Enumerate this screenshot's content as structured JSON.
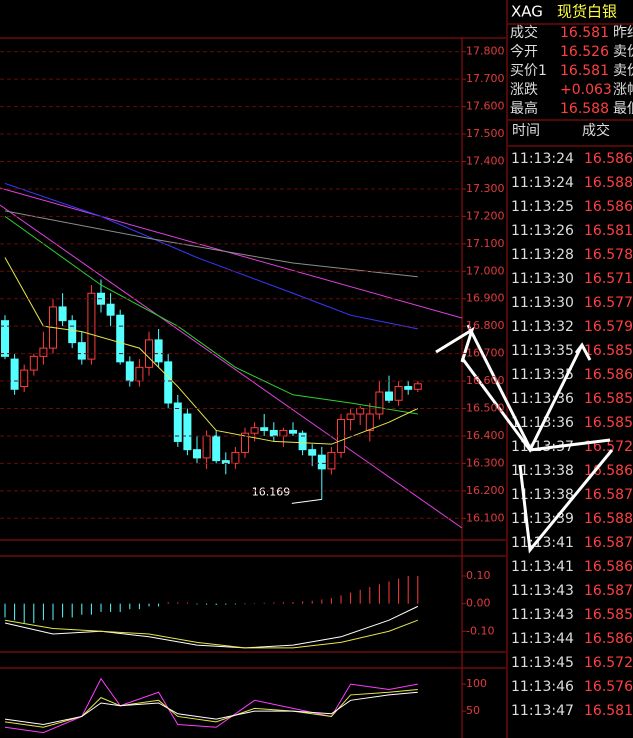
{
  "header": {
    "symbol": "XAG",
    "name": "现货白银"
  },
  "quote_panel": {
    "rows": [
      [
        "成交",
        "16.581",
        "昨结"
      ],
      [
        "今开",
        "16.526",
        "卖价"
      ],
      [
        "买价1",
        "16.581",
        "卖价"
      ],
      [
        "涨跌",
        "+0.063",
        "涨幅"
      ],
      [
        "最高",
        "16.588",
        "最低"
      ]
    ]
  },
  "trades": {
    "columns": [
      "时间",
      "成交"
    ],
    "rows": [
      [
        "11:13:24",
        "16.586"
      ],
      [
        "11:13:24",
        "16.588"
      ],
      [
        "11:13:25",
        "16.586"
      ],
      [
        "11:13:26",
        "16.581"
      ],
      [
        "11:13:28",
        "16.578"
      ],
      [
        "11:13:30",
        "16.571"
      ],
      [
        "11:13:30",
        "16.577"
      ],
      [
        "11:13:32",
        "16.579"
      ],
      [
        "11:13:35",
        "16.585"
      ],
      [
        "11:13:35",
        "16.586"
      ],
      [
        "11:13:36",
        "16.585"
      ],
      [
        "11:13:36",
        "16.585"
      ],
      [
        "11:13:37",
        "16.572"
      ],
      [
        "11:13:38",
        "16.586"
      ],
      [
        "11:13:38",
        "16.587"
      ],
      [
        "11:13:39",
        "16.588"
      ],
      [
        "11:13:41",
        "16.587"
      ],
      [
        "11:13:41",
        "16.586"
      ],
      [
        "11:13:43",
        "16.587"
      ],
      [
        "11:13:43",
        "16.585"
      ],
      [
        "11:13:44",
        "16.586"
      ],
      [
        "11:13:45",
        "16.572"
      ],
      [
        "11:13:46",
        "16.576"
      ],
      [
        "11:13:47",
        "16.581"
      ]
    ]
  },
  "chart_data": [
    {
      "type": "candlestick",
      "up_color": "#ff3c3c",
      "down_color": "#54ffff",
      "grid": true,
      "ylim": [
        16.05,
        17.85
      ],
      "yticks": [
        {
          "value": 17.8,
          "label": "17.800"
        },
        {
          "value": 17.7,
          "label": "17.700"
        },
        {
          "value": 17.6,
          "label": "17.600"
        },
        {
          "value": 17.5,
          "label": "17.500"
        },
        {
          "value": 17.4,
          "label": "17.400"
        },
        {
          "value": 17.3,
          "label": "17.300"
        },
        {
          "value": 17.2,
          "label": "17.200"
        },
        {
          "value": 17.1,
          "label": "17.100"
        },
        {
          "value": 17.0,
          "label": "17.000"
        },
        {
          "value": 16.9,
          "label": "16.900"
        },
        {
          "value": 16.8,
          "label": "16.800"
        },
        {
          "value": 16.7,
          "label": "16.700"
        },
        {
          "value": 16.6,
          "label": "16.600"
        },
        {
          "value": 16.5,
          "label": "16.500"
        },
        {
          "value": 16.4,
          "label": "16.400"
        },
        {
          "value": 16.3,
          "label": "16.300"
        },
        {
          "value": 16.2,
          "label": "16.200"
        },
        {
          "value": 16.1,
          "label": "16.100"
        }
      ],
      "open": [
        16.82,
        16.68,
        16.58,
        16.64,
        16.69,
        16.72,
        16.87,
        16.82,
        16.74,
        16.68,
        16.92,
        16.88,
        16.84,
        16.67,
        16.6,
        16.65,
        16.75,
        16.67,
        16.52,
        16.48,
        16.35,
        16.32,
        16.4,
        16.31,
        16.3,
        16.34,
        16.41,
        16.43,
        16.42,
        16.4,
        16.42,
        16.41,
        16.35,
        16.33,
        16.28,
        16.34,
        16.46,
        16.48,
        16.42,
        16.48,
        16.56,
        16.53,
        16.58,
        16.57
      ],
      "high": [
        16.84,
        16.7,
        16.66,
        16.7,
        16.78,
        16.9,
        16.92,
        16.84,
        16.78,
        16.95,
        16.97,
        16.92,
        16.86,
        16.69,
        16.68,
        16.78,
        16.79,
        16.7,
        16.55,
        16.5,
        16.4,
        16.42,
        16.42,
        16.34,
        16.36,
        16.43,
        16.45,
        16.48,
        16.45,
        16.43,
        16.45,
        16.42,
        16.37,
        16.36,
        16.36,
        16.48,
        16.5,
        16.51,
        16.52,
        16.6,
        16.62,
        16.6,
        16.6,
        16.6
      ],
      "low": [
        16.68,
        16.55,
        16.56,
        16.62,
        16.66,
        16.7,
        16.8,
        16.72,
        16.66,
        16.66,
        16.85,
        16.8,
        16.66,
        16.58,
        16.58,
        16.62,
        16.65,
        16.5,
        16.36,
        16.33,
        16.3,
        16.28,
        16.3,
        16.26,
        16.28,
        16.32,
        16.38,
        16.4,
        16.38,
        16.36,
        16.4,
        16.33,
        16.29,
        16.169,
        16.26,
        16.32,
        16.42,
        16.44,
        16.38,
        16.46,
        16.52,
        16.51,
        16.55,
        16.56
      ],
      "close": [
        16.69,
        16.57,
        16.64,
        16.69,
        16.72,
        16.87,
        16.82,
        16.74,
        16.68,
        16.92,
        16.88,
        16.84,
        16.67,
        16.6,
        16.65,
        16.75,
        16.67,
        16.52,
        16.38,
        16.35,
        16.32,
        16.4,
        16.31,
        16.3,
        16.34,
        16.41,
        16.43,
        16.42,
        16.4,
        16.42,
        16.41,
        16.35,
        16.33,
        16.28,
        16.34,
        16.46,
        16.48,
        16.5,
        16.48,
        16.56,
        16.53,
        16.58,
        16.57,
        16.59
      ],
      "series": [
        {
          "color": "#3a3aff",
          "x": [
            0,
            10,
            20,
            30,
            36,
            43
          ],
          "values": [
            17.32,
            17.2,
            17.05,
            16.92,
            16.84,
            16.79
          ]
        },
        {
          "color": "#8c8c8c",
          "x": [
            0,
            15,
            30,
            43
          ],
          "values": [
            17.22,
            17.12,
            17.03,
            16.98
          ]
        },
        {
          "color": "#2ed12e",
          "x": [
            0,
            10,
            18,
            24,
            30,
            36,
            43
          ],
          "values": [
            17.2,
            16.95,
            16.8,
            16.65,
            16.55,
            16.52,
            16.48
          ]
        },
        {
          "color": "#e6e64a",
          "x": [
            0,
            4,
            8,
            14,
            18,
            22,
            28,
            34,
            40,
            43
          ],
          "values": [
            17.05,
            16.8,
            16.78,
            16.72,
            16.58,
            16.42,
            16.38,
            16.37,
            16.45,
            16.5
          ]
        }
      ],
      "annotations": [
        {
          "text": "16.169"
        }
      ]
    },
    {
      "type": "bar",
      "up_color": "#ff3c3c",
      "down_color": "#54ffff",
      "ylim": [
        -0.175,
        0.165
      ],
      "yticks": [
        {
          "value": 0.1,
          "label": "0.10"
        },
        {
          "value": 0,
          "label": "0.00"
        },
        {
          "value": -0.1,
          "label": "-0.10"
        }
      ],
      "values": [
        -0.05,
        -0.06,
        -0.07,
        -0.07,
        -0.06,
        -0.06,
        -0.05,
        -0.05,
        -0.04,
        -0.04,
        -0.03,
        -0.03,
        -0.03,
        -0.02,
        -0.02,
        -0.01,
        -0.01,
        0.005,
        0.005,
        0.004,
        -0.003,
        -0.004,
        -0.005,
        -0.004,
        -0.003,
        -0.002,
        0.002,
        0.003,
        0.004,
        0.005,
        0.006,
        0.008,
        0.01,
        0.015,
        0.02,
        0.03,
        0.04,
        0.05,
        0.06,
        0.07,
        0.08,
        0.09,
        0.1,
        0.1
      ],
      "series": [
        {
          "color": "#ffffff",
          "x": [
            0,
            5,
            10,
            15,
            20,
            25,
            30,
            35,
            40,
            43
          ],
          "values": [
            -0.07,
            -0.11,
            -0.1,
            -0.12,
            -0.15,
            -0.16,
            -0.15,
            -0.12,
            -0.06,
            -0.01
          ]
        },
        {
          "color": "#e6e64a",
          "x": [
            0,
            5,
            10,
            15,
            20,
            25,
            30,
            35,
            40,
            43
          ],
          "values": [
            -0.06,
            -0.09,
            -0.1,
            -0.11,
            -0.14,
            -0.16,
            -0.16,
            -0.14,
            -0.1,
            -0.06
          ]
        }
      ]
    },
    {
      "type": "line",
      "ylim": [
        0,
        130
      ],
      "yticks": [
        100,
        50
      ],
      "series": [
        {
          "color": "#ff3cff",
          "x": [
            0,
            4,
            8,
            10,
            12,
            16,
            18,
            22,
            26,
            30,
            34,
            36,
            40,
            43
          ],
          "values": [
            20,
            10,
            40,
            110,
            60,
            85,
            25,
            20,
            70,
            55,
            40,
            100,
            90,
            100
          ]
        },
        {
          "color": "#e6e64a",
          "x": [
            0,
            4,
            8,
            10,
            12,
            16,
            18,
            22,
            26,
            30,
            34,
            36,
            40,
            43
          ],
          "values": [
            30,
            20,
            40,
            75,
            60,
            70,
            40,
            30,
            55,
            50,
            40,
            80,
            85,
            90
          ]
        },
        {
          "color": "#ffffff",
          "x": [
            0,
            4,
            8,
            10,
            12,
            16,
            18,
            22,
            26,
            30,
            34,
            36,
            40,
            43
          ],
          "values": [
            35,
            25,
            40,
            65,
            60,
            65,
            45,
            35,
            50,
            50,
            45,
            70,
            80,
            85
          ]
        }
      ]
    }
  ]
}
